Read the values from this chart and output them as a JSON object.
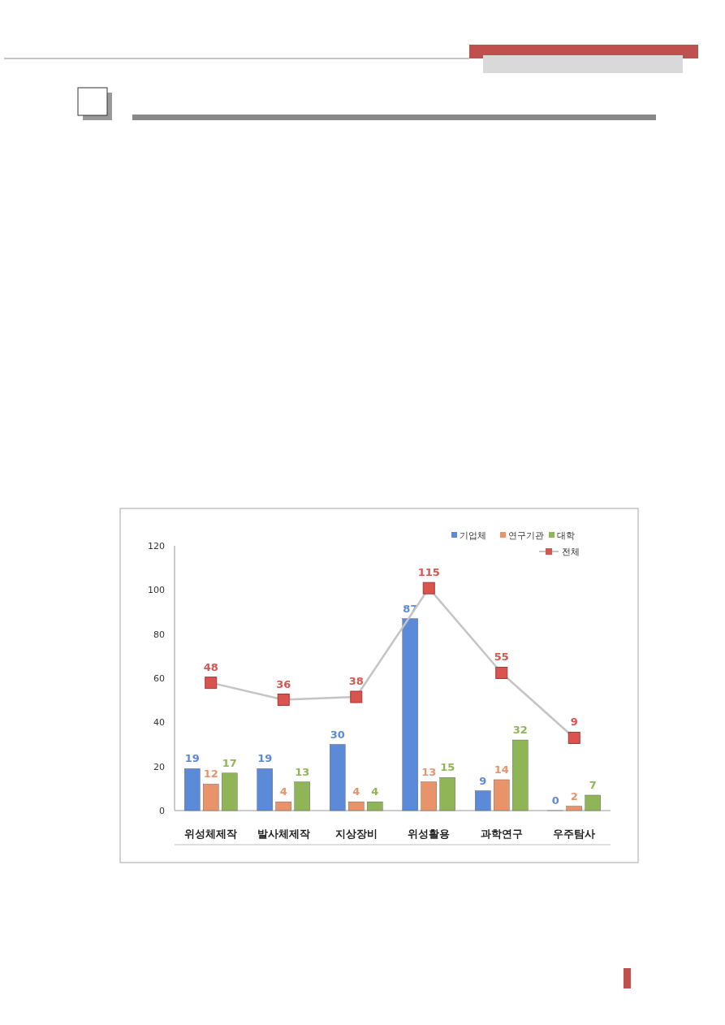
{
  "chart_data": {
    "type": "bar",
    "categories": [
      "위성체제작",
      "발사체제작",
      "지상장비",
      "위성활용",
      "과학연구",
      "우주탐사"
    ],
    "series": [
      {
        "name": "기업체",
        "color": "#5b8ad8",
        "values": [
          19,
          19,
          30,
          87,
          9,
          0
        ]
      },
      {
        "name": "연구기관",
        "color": "#e9936a",
        "values": [
          12,
          4,
          4,
          13,
          14,
          2
        ]
      },
      {
        "name": "대학",
        "color": "#8fb556",
        "values": [
          17,
          13,
          4,
          15,
          32,
          7
        ]
      },
      {
        "name": "전체",
        "type": "line",
        "axis": "y2",
        "color": "#d9534f",
        "values": [
          48,
          36,
          38,
          115,
          55,
          9
        ]
      }
    ],
    "ylim": [
      0,
      120
    ],
    "yticks": [
      0,
      20,
      40,
      60,
      80,
      100,
      120
    ],
    "y2lim": [
      -42.5,
      145
    ],
    "tick_labels": "xy",
    "data_labels": true,
    "legend": "top right",
    "marker": "square",
    "grid": false
  }
}
